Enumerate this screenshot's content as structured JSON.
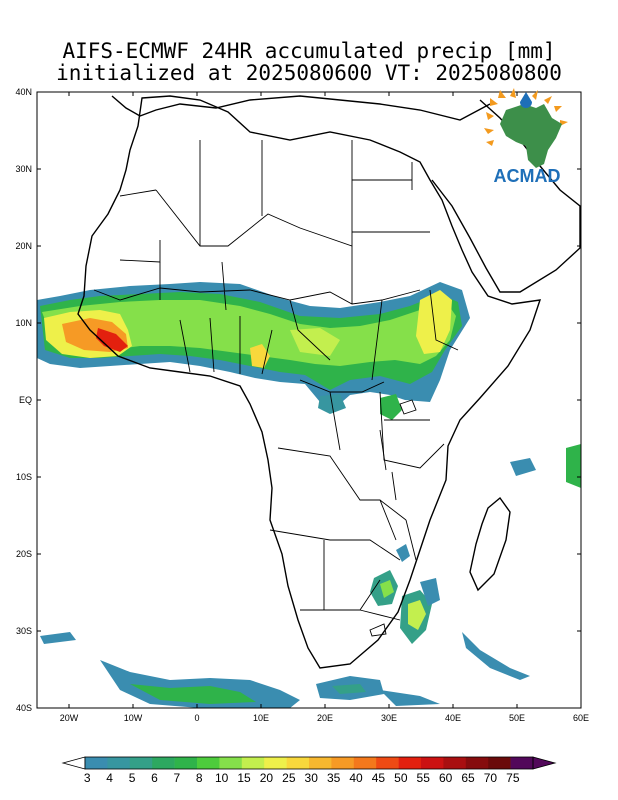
{
  "title": {
    "line1": "AIFS-ECMWF 24HR accumulated precip [mm]",
    "line2": "initialized at 2025080600  VT: 2025080800"
  },
  "logo": {
    "text": "ACMAD"
  },
  "lat_labels": [
    "40N",
    "30N",
    "20N",
    "10N",
    "EQ",
    "10S",
    "20S",
    "30S",
    "40S"
  ],
  "lon_labels": [
    "20W",
    "10W",
    "0",
    "10E",
    "20E",
    "30E",
    "40E",
    "50E",
    "60E"
  ],
  "colorbar": {
    "labels": [
      "3",
      "4",
      "5",
      "6",
      "7",
      "8",
      "10",
      "15",
      "20",
      "25",
      "30",
      "35",
      "40",
      "45",
      "50",
      "55",
      "60",
      "65",
      "70",
      "75"
    ],
    "colors": [
      "#3a8db0",
      "#3796a0",
      "#34a088",
      "#2da860",
      "#2fb34a",
      "#4dcc3c",
      "#85e04a",
      "#c3ef4e",
      "#eef04a",
      "#f8d83c",
      "#f7b82f",
      "#f69a25",
      "#f3781c",
      "#ee4a14",
      "#e3200e",
      "#cc1212",
      "#a90f10",
      "#860c0d",
      "#6a0a0a",
      "#52085a"
    ]
  },
  "colors": {
    "precip_low": "#3a8db0",
    "precip_mid": "#2fb34a",
    "precip_high": "#f8d83c",
    "precip_max": "#e3200e",
    "coast": "#000000"
  }
}
